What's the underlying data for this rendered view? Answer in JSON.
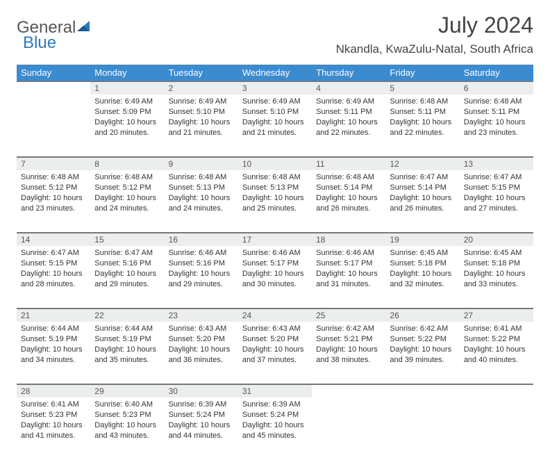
{
  "brand": {
    "part1": "General",
    "part2": "Blue"
  },
  "title": "July 2024",
  "location": "Nkandla, KwaZulu-Natal, South Africa",
  "colors": {
    "header_bg": "#3b8bd0",
    "header_text": "#ffffff",
    "daynum_bg": "#eceeee",
    "border": "#777777",
    "logo_blue": "#2a7ac0",
    "text": "#333333"
  },
  "weekdays": [
    "Sunday",
    "Monday",
    "Tuesday",
    "Wednesday",
    "Thursday",
    "Friday",
    "Saturday"
  ],
  "weeks": [
    [
      null,
      {
        "n": "1",
        "sr": "6:49 AM",
        "ss": "5:09 PM",
        "dl": "10 hours and 20 minutes."
      },
      {
        "n": "2",
        "sr": "6:49 AM",
        "ss": "5:10 PM",
        "dl": "10 hours and 21 minutes."
      },
      {
        "n": "3",
        "sr": "6:49 AM",
        "ss": "5:10 PM",
        "dl": "10 hours and 21 minutes."
      },
      {
        "n": "4",
        "sr": "6:49 AM",
        "ss": "5:11 PM",
        "dl": "10 hours and 22 minutes."
      },
      {
        "n": "5",
        "sr": "6:48 AM",
        "ss": "5:11 PM",
        "dl": "10 hours and 22 minutes."
      },
      {
        "n": "6",
        "sr": "6:48 AM",
        "ss": "5:11 PM",
        "dl": "10 hours and 23 minutes."
      }
    ],
    [
      {
        "n": "7",
        "sr": "6:48 AM",
        "ss": "5:12 PM",
        "dl": "10 hours and 23 minutes."
      },
      {
        "n": "8",
        "sr": "6:48 AM",
        "ss": "5:12 PM",
        "dl": "10 hours and 24 minutes."
      },
      {
        "n": "9",
        "sr": "6:48 AM",
        "ss": "5:13 PM",
        "dl": "10 hours and 24 minutes."
      },
      {
        "n": "10",
        "sr": "6:48 AM",
        "ss": "5:13 PM",
        "dl": "10 hours and 25 minutes."
      },
      {
        "n": "11",
        "sr": "6:48 AM",
        "ss": "5:14 PM",
        "dl": "10 hours and 26 minutes."
      },
      {
        "n": "12",
        "sr": "6:47 AM",
        "ss": "5:14 PM",
        "dl": "10 hours and 26 minutes."
      },
      {
        "n": "13",
        "sr": "6:47 AM",
        "ss": "5:15 PM",
        "dl": "10 hours and 27 minutes."
      }
    ],
    [
      {
        "n": "14",
        "sr": "6:47 AM",
        "ss": "5:15 PM",
        "dl": "10 hours and 28 minutes."
      },
      {
        "n": "15",
        "sr": "6:47 AM",
        "ss": "5:16 PM",
        "dl": "10 hours and 29 minutes."
      },
      {
        "n": "16",
        "sr": "6:46 AM",
        "ss": "5:16 PM",
        "dl": "10 hours and 29 minutes."
      },
      {
        "n": "17",
        "sr": "6:46 AM",
        "ss": "5:17 PM",
        "dl": "10 hours and 30 minutes."
      },
      {
        "n": "18",
        "sr": "6:46 AM",
        "ss": "5:17 PM",
        "dl": "10 hours and 31 minutes."
      },
      {
        "n": "19",
        "sr": "6:45 AM",
        "ss": "5:18 PM",
        "dl": "10 hours and 32 minutes."
      },
      {
        "n": "20",
        "sr": "6:45 AM",
        "ss": "5:18 PM",
        "dl": "10 hours and 33 minutes."
      }
    ],
    [
      {
        "n": "21",
        "sr": "6:44 AM",
        "ss": "5:19 PM",
        "dl": "10 hours and 34 minutes."
      },
      {
        "n": "22",
        "sr": "6:44 AM",
        "ss": "5:19 PM",
        "dl": "10 hours and 35 minutes."
      },
      {
        "n": "23",
        "sr": "6:43 AM",
        "ss": "5:20 PM",
        "dl": "10 hours and 36 minutes."
      },
      {
        "n": "24",
        "sr": "6:43 AM",
        "ss": "5:20 PM",
        "dl": "10 hours and 37 minutes."
      },
      {
        "n": "25",
        "sr": "6:42 AM",
        "ss": "5:21 PM",
        "dl": "10 hours and 38 minutes."
      },
      {
        "n": "26",
        "sr": "6:42 AM",
        "ss": "5:22 PM",
        "dl": "10 hours and 39 minutes."
      },
      {
        "n": "27",
        "sr": "6:41 AM",
        "ss": "5:22 PM",
        "dl": "10 hours and 40 minutes."
      }
    ],
    [
      {
        "n": "28",
        "sr": "6:41 AM",
        "ss": "5:23 PM",
        "dl": "10 hours and 41 minutes."
      },
      {
        "n": "29",
        "sr": "6:40 AM",
        "ss": "5:23 PM",
        "dl": "10 hours and 43 minutes."
      },
      {
        "n": "30",
        "sr": "6:39 AM",
        "ss": "5:24 PM",
        "dl": "10 hours and 44 minutes."
      },
      {
        "n": "31",
        "sr": "6:39 AM",
        "ss": "5:24 PM",
        "dl": "10 hours and 45 minutes."
      },
      null,
      null,
      null
    ]
  ],
  "labels": {
    "sunrise": "Sunrise:",
    "sunset": "Sunset:",
    "daylight": "Daylight:"
  }
}
